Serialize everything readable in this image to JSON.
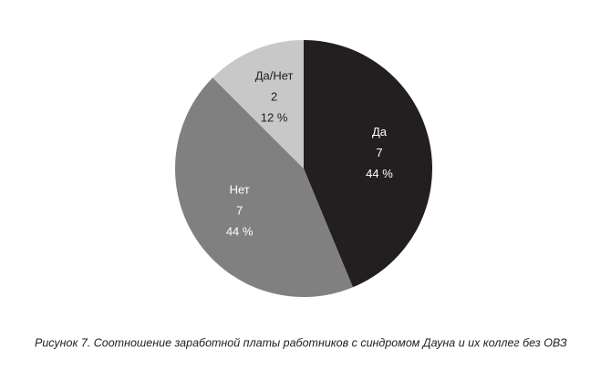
{
  "chart_data": {
    "type": "pie",
    "caption": "Рисунок 7. Соотношение заработной платы работников с синдромом Дауна и их коллег без ОВЗ",
    "categories": [
      "Да",
      "Нет",
      "Да/Нет"
    ],
    "values": [
      7,
      7,
      2
    ],
    "percent_labels": [
      "44 %",
      "44 %",
      "12 %"
    ],
    "colors": [
      "#231f20",
      "#808080",
      "#c8c8c8"
    ]
  }
}
